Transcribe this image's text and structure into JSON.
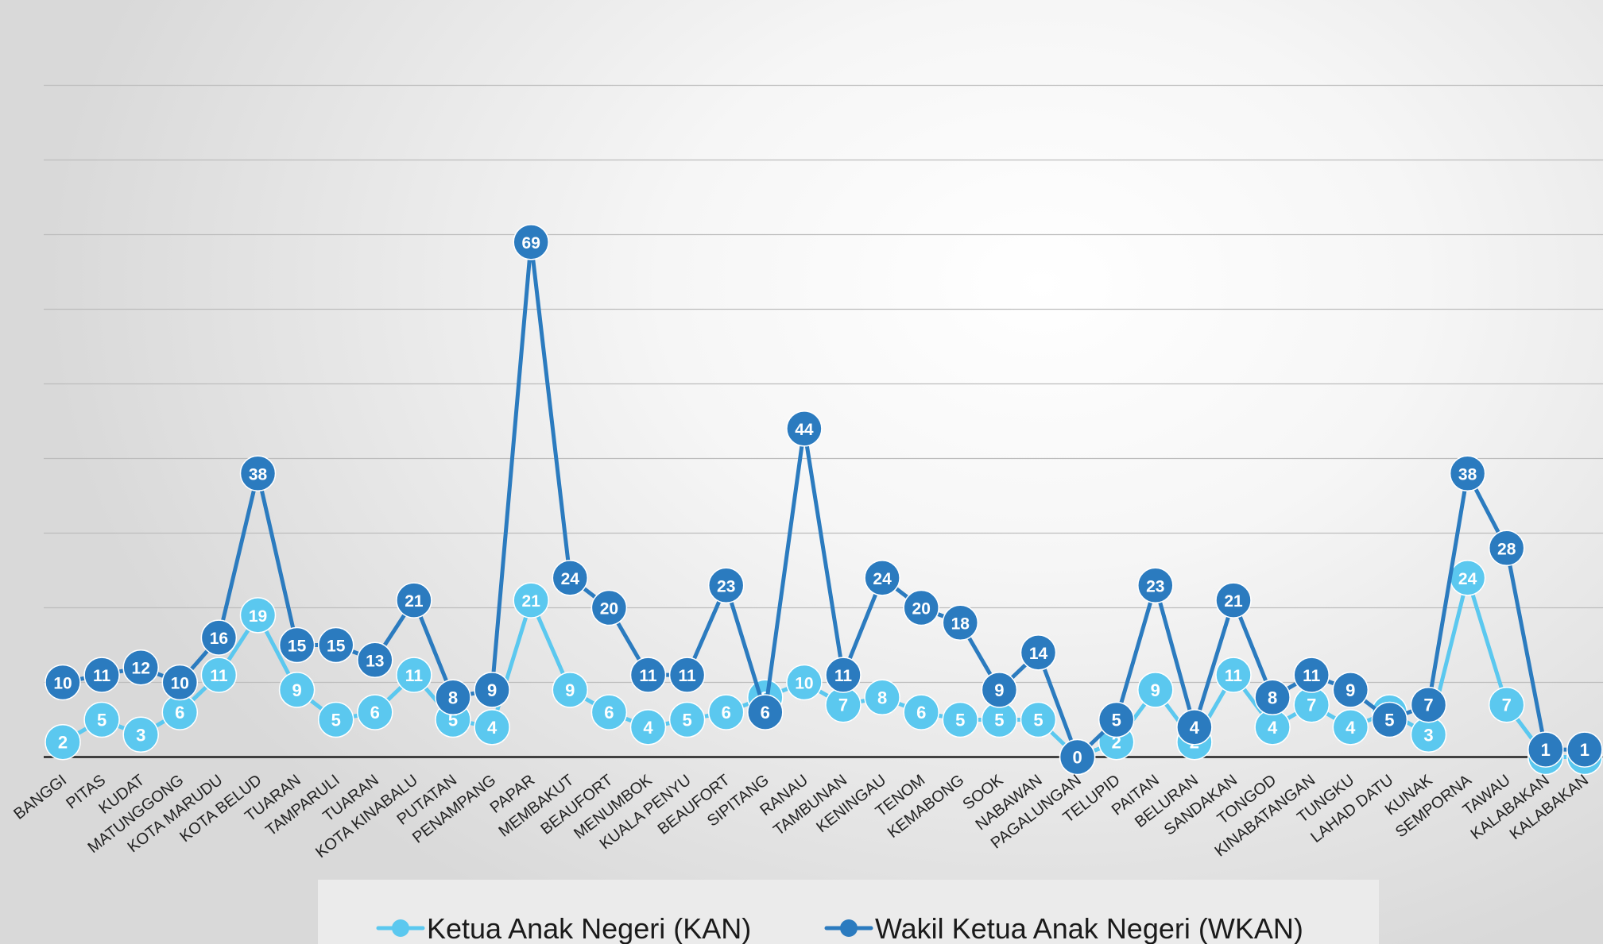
{
  "chart_data": {
    "type": "line",
    "categories": [
      "BANGGI",
      "PITAS",
      "KUDAT",
      "MATUNGGONG",
      "KOTA MARUDU",
      "KOTA BELUD",
      "TUARAN",
      "TAMPARULI",
      "TUARAN",
      "KOTA KINABALU",
      "PUTATAN",
      "PENAMPANG",
      "PAPAR",
      "MEMBAKUT",
      "BEAUFORT",
      "MENUMBOK",
      "KUALA PENYU",
      "BEAUFORT",
      "SIPITANG",
      "RANAU",
      "TAMBUNAN",
      "KENINGAU",
      "TENOM",
      "KEMABONG",
      "SOOK",
      "NABAWAN",
      "PAGALUNGAN",
      "TELUPID",
      "PAITAN",
      "BELURAN",
      "SANDAKAN",
      "TONGOD",
      "KINABATANGAN",
      "TUNGKU",
      "LAHAD DATU",
      "KUNAK",
      "SEMPORNA",
      "TAWAU",
      "KALABAKAN",
      "KALABAKAN"
    ],
    "series": [
      {
        "name": "Ketua Anak Negeri (KAN)",
        "color": "#5bc8ef",
        "values": [
          2,
          5,
          3,
          6,
          11,
          19,
          9,
          5,
          6,
          11,
          5,
          4,
          21,
          9,
          6,
          4,
          5,
          6,
          8,
          10,
          7,
          8,
          6,
          5,
          5,
          5,
          0,
          2,
          9,
          2,
          11,
          4,
          7,
          4,
          6,
          3,
          24,
          7,
          0,
          0
        ]
      },
      {
        "name": "Wakil Ketua Anak Negeri (WKAN)",
        "color": "#2b7bbf",
        "values": [
          10,
          11,
          12,
          10,
          16,
          38,
          15,
          15,
          13,
          21,
          8,
          9,
          69,
          24,
          20,
          11,
          11,
          23,
          6,
          44,
          11,
          24,
          20,
          18,
          9,
          14,
          0,
          5,
          23,
          4,
          21,
          8,
          11,
          9,
          5,
          7,
          38,
          28,
          1,
          1
        ]
      }
    ],
    "ylim": [
      0,
      90
    ],
    "grid": true,
    "legend_position": "bottom"
  }
}
